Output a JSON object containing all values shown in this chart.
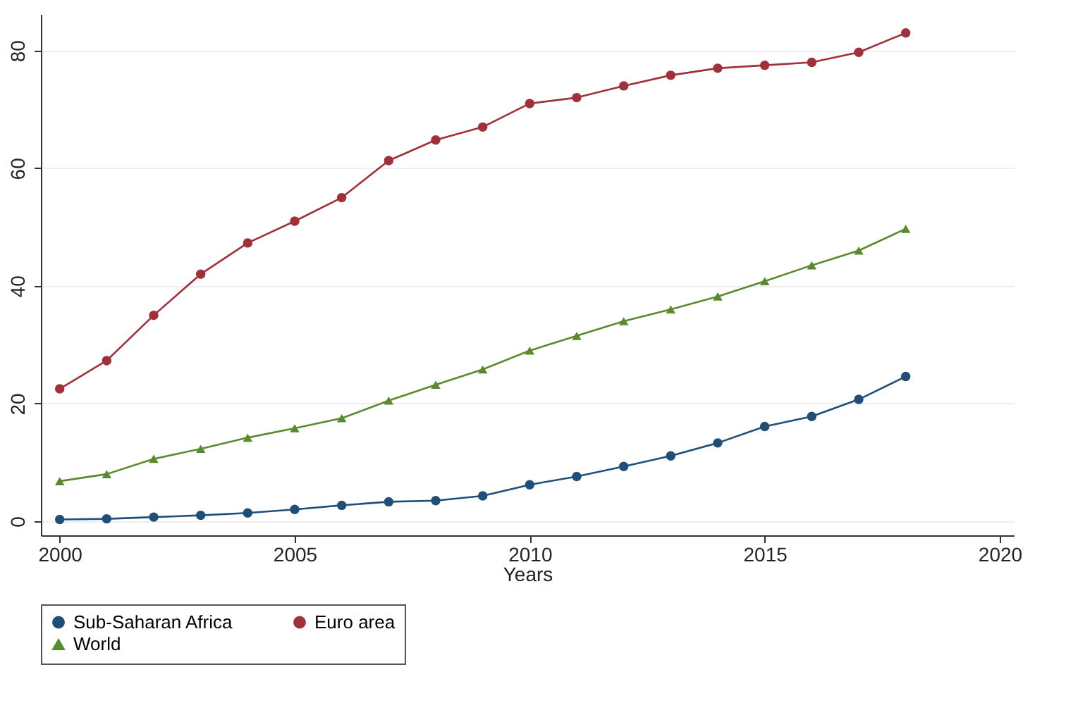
{
  "chart_data": {
    "type": "line",
    "xlabel": "Years",
    "x": [
      2000,
      2001,
      2002,
      2003,
      2004,
      2005,
      2006,
      2007,
      2008,
      2009,
      2010,
      2011,
      2012,
      2013,
      2014,
      2015,
      2016,
      2017,
      2018
    ],
    "series": [
      {
        "name": "Sub-Saharan Africa",
        "color": "#1f4e79",
        "marker": "circle",
        "values": [
          0.3,
          0.4,
          0.7,
          1,
          1.4,
          2,
          2.7,
          3.3,
          3.5,
          4.3,
          6.2,
          7.6,
          9.3,
          11.1,
          13.3,
          16.1,
          17.8,
          20.7,
          24.6
        ]
      },
      {
        "name": "Euro area",
        "color": "#a0303a",
        "marker": "circle",
        "values": [
          22.5,
          27.3,
          35,
          42,
          47.3,
          51,
          55,
          61.3,
          64.8,
          67,
          71,
          72,
          74,
          75.8,
          77,
          77.5,
          78,
          79.7,
          83
        ]
      },
      {
        "name": "World",
        "color": "#5a8a2e",
        "marker": "triangle",
        "values": [
          6.8,
          8,
          10.6,
          12.3,
          14.2,
          15.8,
          17.5,
          20.5,
          23.2,
          25.8,
          29,
          31.5,
          34,
          36,
          38.2,
          40.8,
          43.5,
          46,
          49.7
        ]
      }
    ],
    "xlim": [
      1999.6,
      2020.3
    ],
    "xticks": [
      2000,
      2005,
      2010,
      2015,
      2020
    ],
    "ylim": [
      -2.4,
      86.2
    ],
    "yticks": [
      0,
      20,
      40,
      60,
      80
    ],
    "grid": "y",
    "legend": "bottom",
    "line_style": "solid"
  }
}
